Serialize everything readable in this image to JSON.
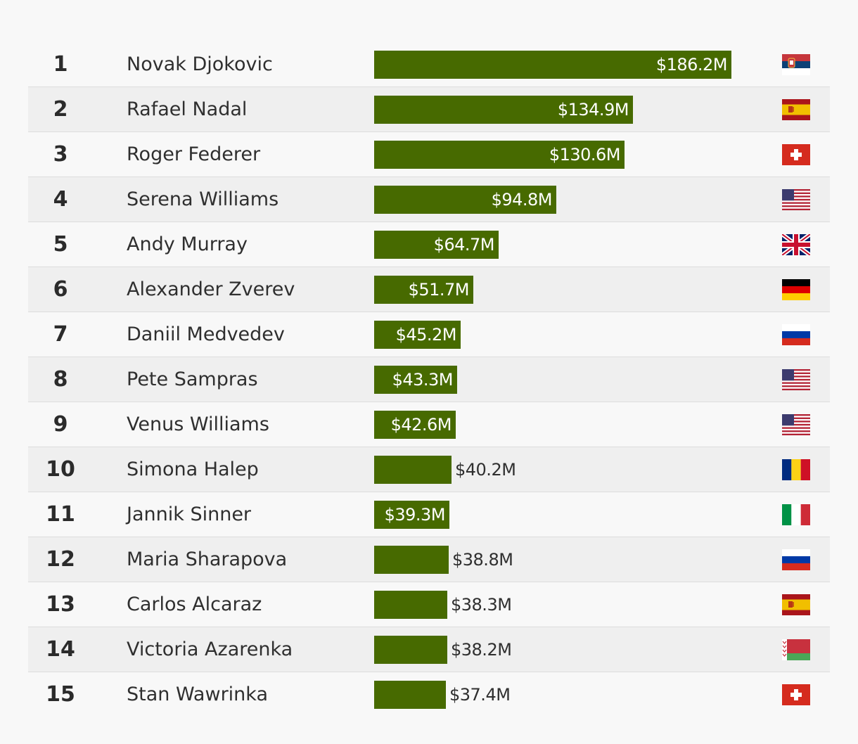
{
  "chart_data": {
    "type": "bar",
    "orientation": "horizontal",
    "bar_color": "#476a00",
    "rows": [
      {
        "rank": "1",
        "name": "Novak Djokovic",
        "value": 186.2,
        "label": "$186.2M",
        "flag": "serbia-flag-icon"
      },
      {
        "rank": "2",
        "name": "Rafael Nadal",
        "value": 134.9,
        "label": "$134.9M",
        "flag": "spain-flag-icon"
      },
      {
        "rank": "3",
        "name": "Roger Federer",
        "value": 130.6,
        "label": "$130.6M",
        "flag": "switzerland-flag-icon"
      },
      {
        "rank": "4",
        "name": "Serena Williams",
        "value": 94.8,
        "label": "$94.8M",
        "flag": "usa-flag-icon"
      },
      {
        "rank": "5",
        "name": "Andy Murray",
        "value": 64.7,
        "label": "$64.7M",
        "flag": "uk-flag-icon"
      },
      {
        "rank": "6",
        "name": "Alexander Zverev",
        "value": 51.7,
        "label": "$51.7M",
        "flag": "germany-flag-icon"
      },
      {
        "rank": "7",
        "name": "Daniil Medvedev",
        "value": 45.2,
        "label": "$45.2M",
        "flag": "russia-flag-icon"
      },
      {
        "rank": "8",
        "name": "Pete Sampras",
        "value": 43.3,
        "label": "$43.3M",
        "flag": "usa-flag-icon"
      },
      {
        "rank": "9",
        "name": "Venus Williams",
        "value": 42.6,
        "label": "$42.6M",
        "flag": "usa-flag-icon"
      },
      {
        "rank": "10",
        "name": "Simona Halep",
        "value": 40.2,
        "label": "$40.2M",
        "flag": "romania-flag-icon"
      },
      {
        "rank": "11",
        "name": "Jannik Sinner",
        "value": 39.3,
        "label": "$39.3M",
        "flag": "italy-flag-icon"
      },
      {
        "rank": "12",
        "name": "Maria Sharapova",
        "value": 38.8,
        "label": "$38.8M",
        "flag": "russia-flag-icon"
      },
      {
        "rank": "13",
        "name": "Carlos Alcaraz",
        "value": 38.3,
        "label": "$38.3M",
        "flag": "spain-flag-icon"
      },
      {
        "rank": "14",
        "name": "Victoria Azarenka",
        "value": 38.2,
        "label": "$38.2M",
        "flag": "belarus-flag-icon"
      },
      {
        "rank": "15",
        "name": "Stan Wawrinka",
        "value": 37.4,
        "label": "$37.4M",
        "flag": "switzerland-flag-icon"
      }
    ],
    "inside_label_rows": [
      1,
      2,
      3,
      4,
      5,
      6,
      7,
      8,
      9,
      11
    ]
  }
}
